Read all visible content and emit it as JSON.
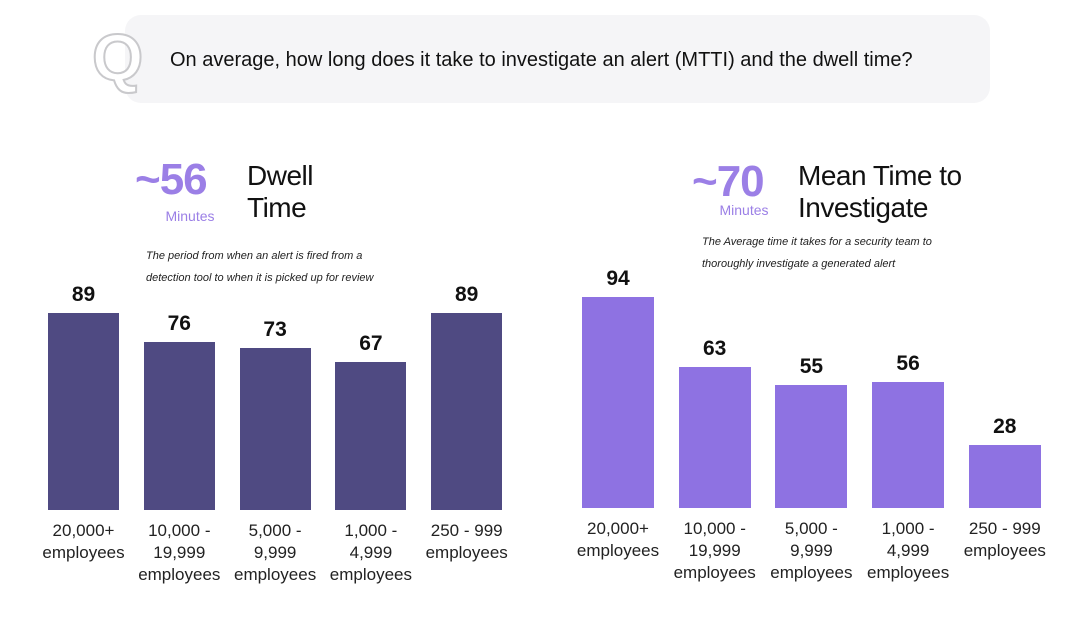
{
  "question": "On average, how long does it take to investigate an alert (MTTI) and the dwell time?",
  "chart_data": [
    {
      "type": "bar",
      "headline": "~56",
      "headline_unit": "Minutes",
      "title": "Dwell Time",
      "subtitle": "The period from when an alert is fired from a detection tool to when it is picked up for review",
      "categories": [
        "20,000+ employees",
        "10,000 - 19,999 employees",
        "5,000 - 9,999 employees",
        "1,000 - 4,999 employees",
        "250 - 999 employees"
      ],
      "values": [
        89,
        76,
        73,
        67,
        89
      ],
      "color": "#4f4a82"
    },
    {
      "type": "bar",
      "headline": "~70",
      "headline_unit": "Minutes",
      "title": "Mean Time to Investigate",
      "subtitle": "The Average time it takes for a security team to thoroughly investigate a generated alert",
      "categories": [
        "20,000+ employees",
        "10,000 - 19,999 employees",
        "5,000 - 9,999 employees",
        "1,000 - 4,999 employees",
        "250 - 999 employees"
      ],
      "values": [
        94,
        63,
        55,
        56,
        28
      ],
      "color": "#8e72e2"
    }
  ]
}
